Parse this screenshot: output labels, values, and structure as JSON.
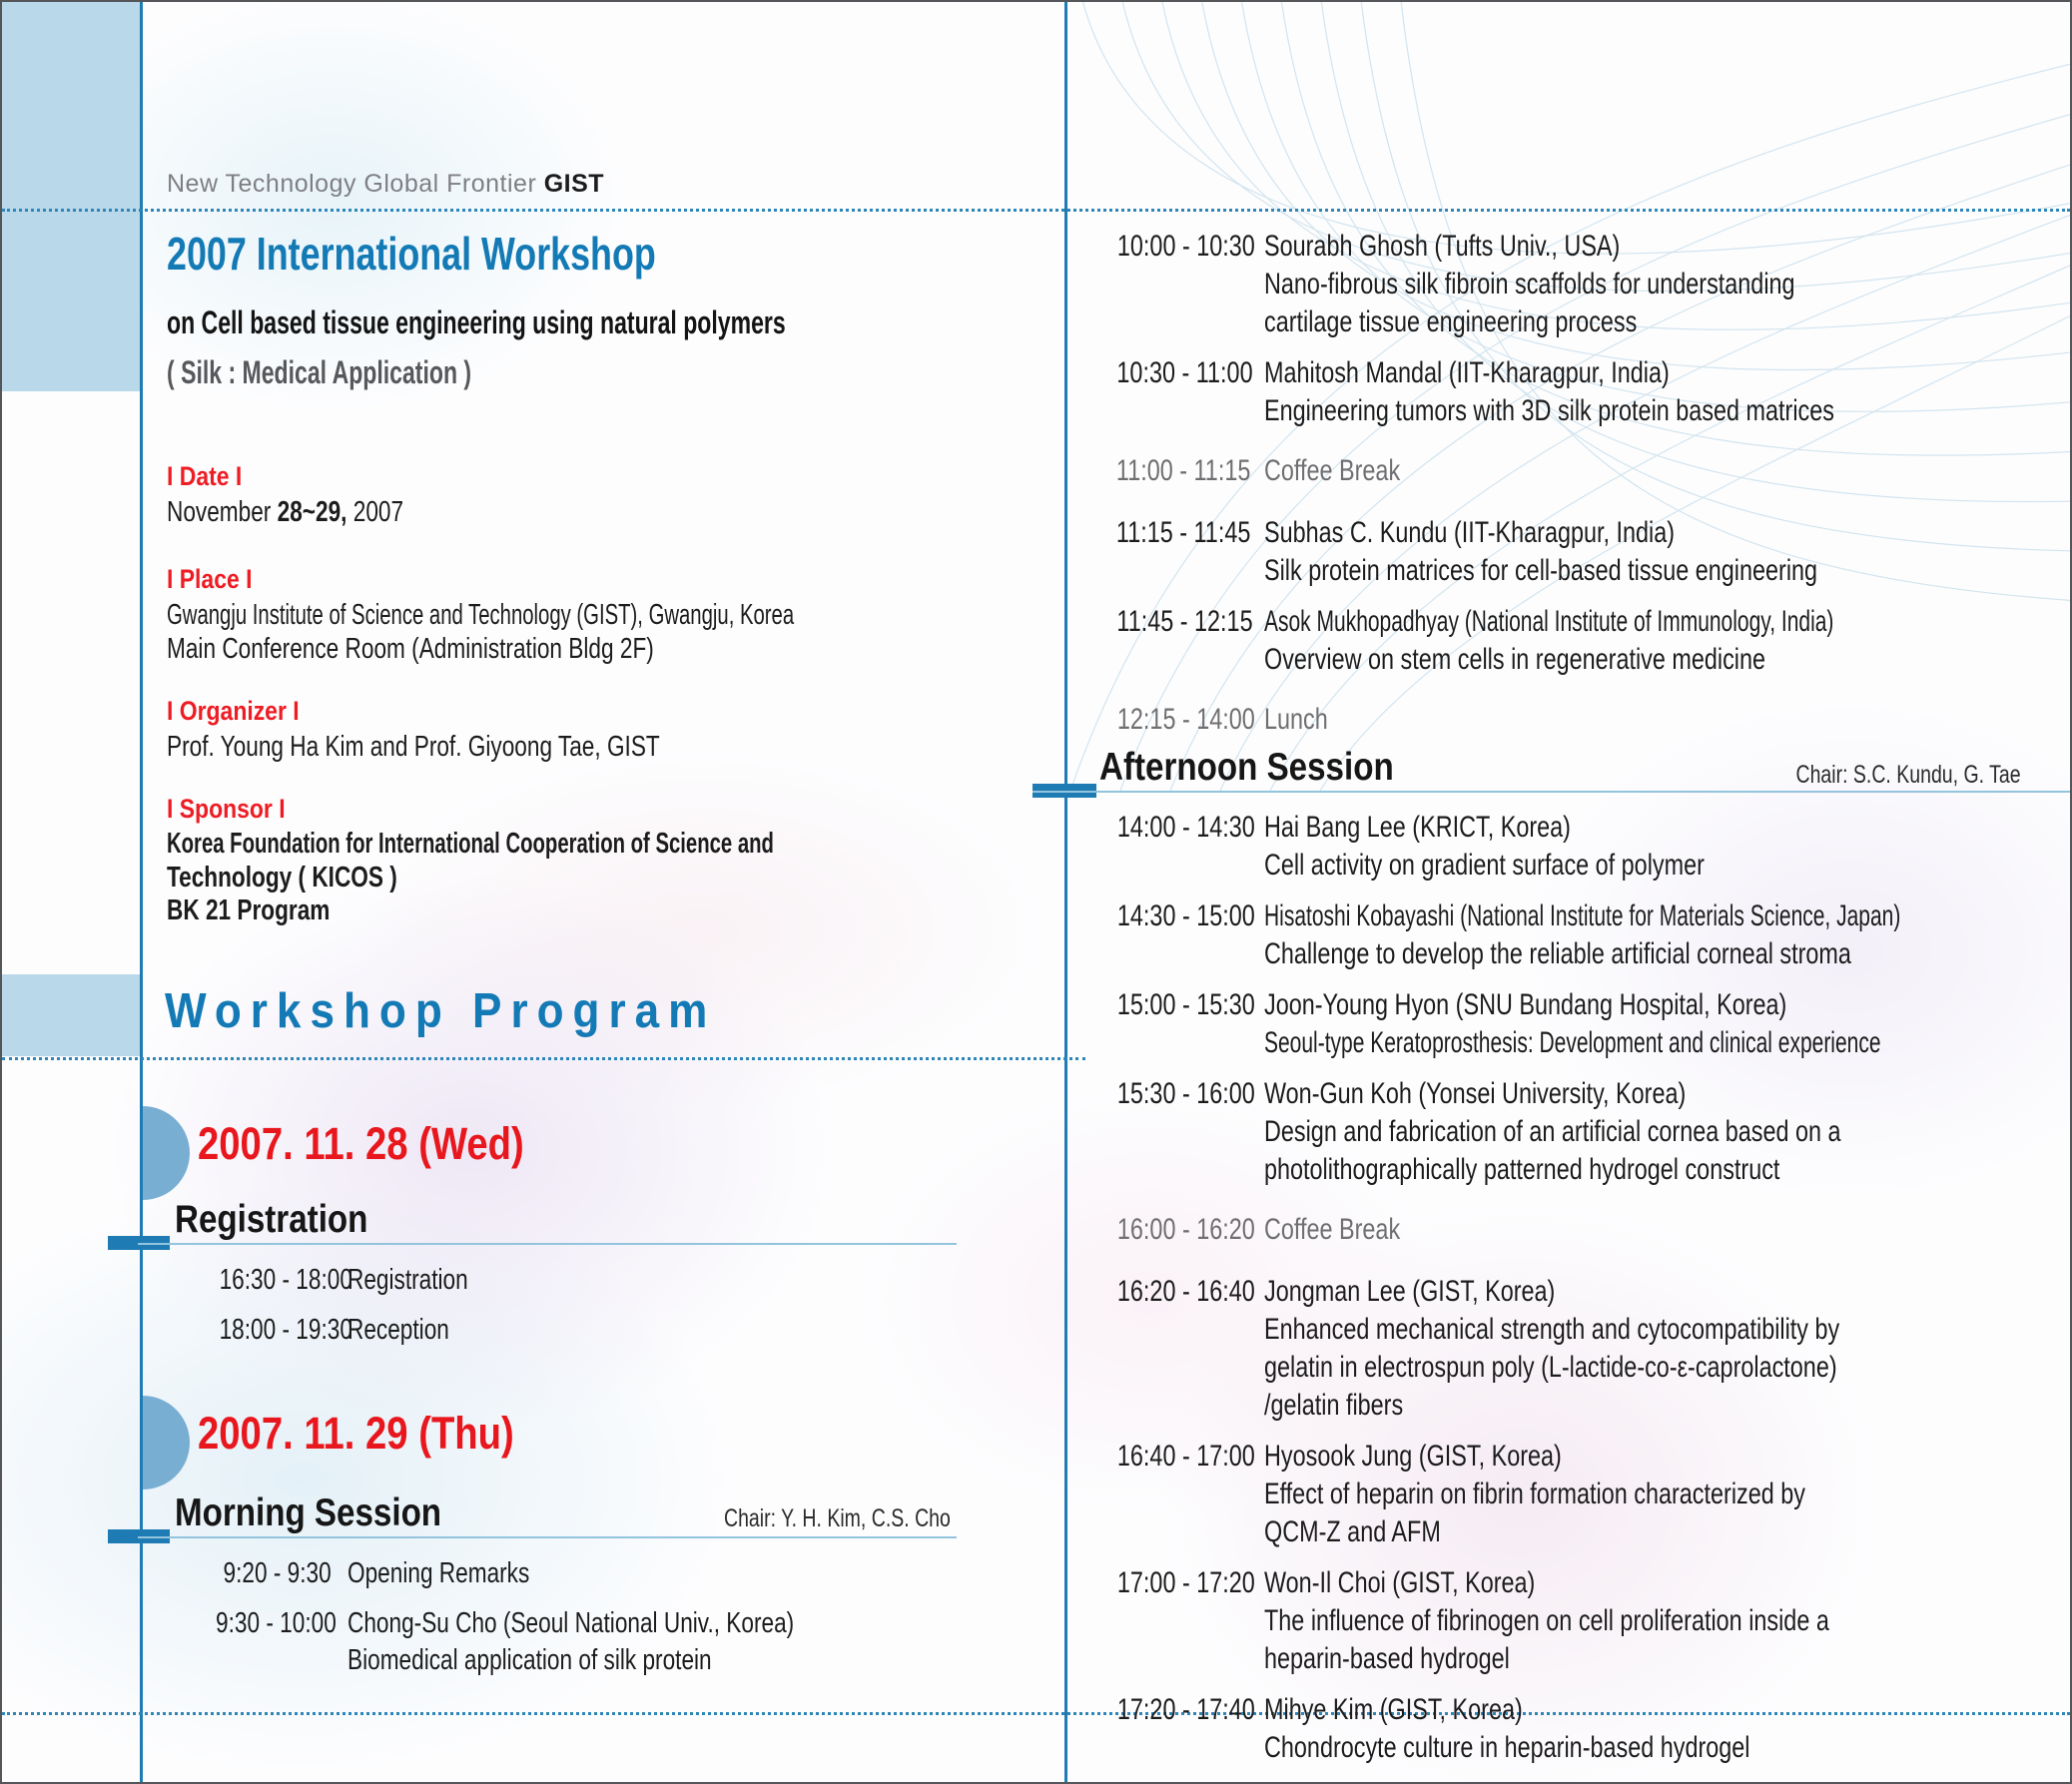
{
  "palette": {
    "accent_blue": "#147ab5",
    "accent_red": "#e8171d",
    "line_blue": "#1e7bb4",
    "muted_gray": "#6f6f71",
    "light_blue_box": "#b9d8ea"
  },
  "brand": {
    "text": "New Technology Global Frontier",
    "org": "GIST"
  },
  "header": {
    "title": "2007 International  Workshop",
    "subtitle": "on Cell based tissue engineering using natural polymers",
    "note": "( Silk : Medical Application )"
  },
  "info": {
    "date_label": "I Date I",
    "date_pre": "November ",
    "date_bold": "28~29,",
    "date_post": " 2007",
    "place_label": "I Place I",
    "place_line1": "Gwangju Institute of Science and Technology (GIST), Gwangju, Korea",
    "place_line2": "Main Conference Room (Administration Bldg 2F)",
    "organizer_label": "I Organizer I",
    "organizer_line": "Prof. Young Ha Kim and Prof. Giyoong Tae, GIST",
    "sponsor_label": "I Sponsor I",
    "sponsor_line1": "Korea Foundation for International Cooperation of Science and",
    "sponsor_line2": "Technology ( KICOS )",
    "sponsor_line3": "BK 21 Program"
  },
  "program_title": "Workshop Program",
  "day1": {
    "heading": "2007. 11. 28 (Wed)",
    "session_title": "Registration",
    "rows": [
      {
        "time": "16:30 - 18:00",
        "lines": [
          {
            "t": "Registration"
          }
        ]
      },
      {
        "time": "18:00 - 19:30",
        "lines": [
          {
            "t": "Reception"
          }
        ]
      }
    ]
  },
  "day2": {
    "heading": "2007. 11. 29 (Thu)",
    "session_title": "Morning Session",
    "chair": "Chair: Y. H. Kim, C.S. Cho",
    "rows": [
      {
        "time": "9:20 -   9:30",
        "lines": [
          {
            "t": "Opening Remarks"
          }
        ]
      },
      {
        "time": "9:30 - 10:00",
        "lines": [
          {
            "t": "Chong-Su Cho (Seoul National Univ., Korea)"
          },
          {
            "t": "Biomedical application of silk protein"
          }
        ]
      }
    ]
  },
  "morning_cont": {
    "rows": [
      {
        "time": "10:00 - 10:30",
        "lines": [
          {
            "t": "Sourabh Ghosh (Tufts Univ., USA)"
          },
          {
            "t": "Nano-fibrous silk fibroin scaffolds for understanding"
          },
          {
            "t": "cartilage tissue engineering process"
          }
        ]
      },
      {
        "time": "10:30 - 11:00",
        "lines": [
          {
            "t": "Mahitosh Mandal (IIT-Kharagpur, India)"
          },
          {
            "t": "Engineering tumors with 3D silk protein based matrices"
          }
        ]
      },
      {
        "time": "11:00 - 11:15",
        "muted": true,
        "lines": [
          {
            "t": "Coffee Break"
          }
        ]
      },
      {
        "time": "11:15 - 11:45",
        "lines": [
          {
            "t": "Subhas C. Kundu (IIT-Kharagpur, India)"
          },
          {
            "t": "Silk protein matrices for cell-based tissue engineering"
          }
        ]
      },
      {
        "time": "11:45 - 12:15",
        "lines": [
          {
            "t": "Asok Mukhopadhyay (National Institute of Immunology, India)",
            "sx": 70
          },
          {
            "t": "Overview on stem cells in regenerative medicine"
          }
        ]
      },
      {
        "time": "12:15 - 14:00",
        "muted": true,
        "lines": [
          {
            "t": "Lunch"
          }
        ]
      }
    ]
  },
  "afternoon": {
    "session_title": "Afternoon Session",
    "chair": "Chair: S.C. Kundu, G. Tae",
    "rows": [
      {
        "time": "14:00 - 14:30",
        "lines": [
          {
            "t": "Hai Bang Lee (KRICT, Korea)"
          },
          {
            "t": "Cell activity on gradient surface of polymer"
          }
        ]
      },
      {
        "time": "14:30 - 15:00",
        "lines": [
          {
            "t": "Hisatoshi Kobayashi (National Institute for Materials Science, Japan)",
            "sx": 70
          },
          {
            "t": "Challenge to develop the reliable artificial corneal stroma"
          }
        ]
      },
      {
        "time": "15:00 - 15:30",
        "lines": [
          {
            "t": "Joon-Young Hyon (SNU Bundang Hospital, Korea)"
          },
          {
            "t": "Seoul-type Keratoprosthesis: Development and clinical experience",
            "sx": 70
          }
        ]
      },
      {
        "time": "15:30 - 16:00",
        "lines": [
          {
            "t": "Won-Gun Koh (Yonsei University, Korea)"
          },
          {
            "t": "Design and fabrication of an artificial cornea based on a"
          },
          {
            "t": "photolithographically patterned hydrogel construct"
          }
        ]
      },
      {
        "time": "16:00 - 16:20",
        "muted": true,
        "lines": [
          {
            "t": "Coffee Break"
          }
        ]
      },
      {
        "time": "16:20 - 16:40",
        "lines": [
          {
            "t": "Jongman Lee (GIST, Korea)"
          },
          {
            "t": "Enhanced mechanical strength and cytocompatibility by"
          },
          {
            "t": "gelatin in electrospun poly (L-lactide-co-ε-caprolactone)"
          },
          {
            "t": "/gelatin fibers"
          }
        ]
      },
      {
        "time": "16:40 - 17:00",
        "lines": [
          {
            "t": "Hyosook Jung (GIST, Korea)"
          },
          {
            "t": "Effect of heparin on fibrin formation characterized by"
          },
          {
            "t": "QCM-Z and AFM"
          }
        ]
      },
      {
        "time": "17:00 - 17:20",
        "lines": [
          {
            "t": "Won-Il Choi (GIST, Korea)"
          },
          {
            "t": "The influence of fibrinogen on cell proliferation inside a"
          },
          {
            "t": "heparin-based hydrogel"
          }
        ]
      },
      {
        "time": "17:20 - 17:40",
        "lines": [
          {
            "t": "Mihye Kim (GIST, Korea)"
          },
          {
            "t": "Chondrocyte culture in heparin-based hydrogel"
          }
        ]
      }
    ]
  }
}
